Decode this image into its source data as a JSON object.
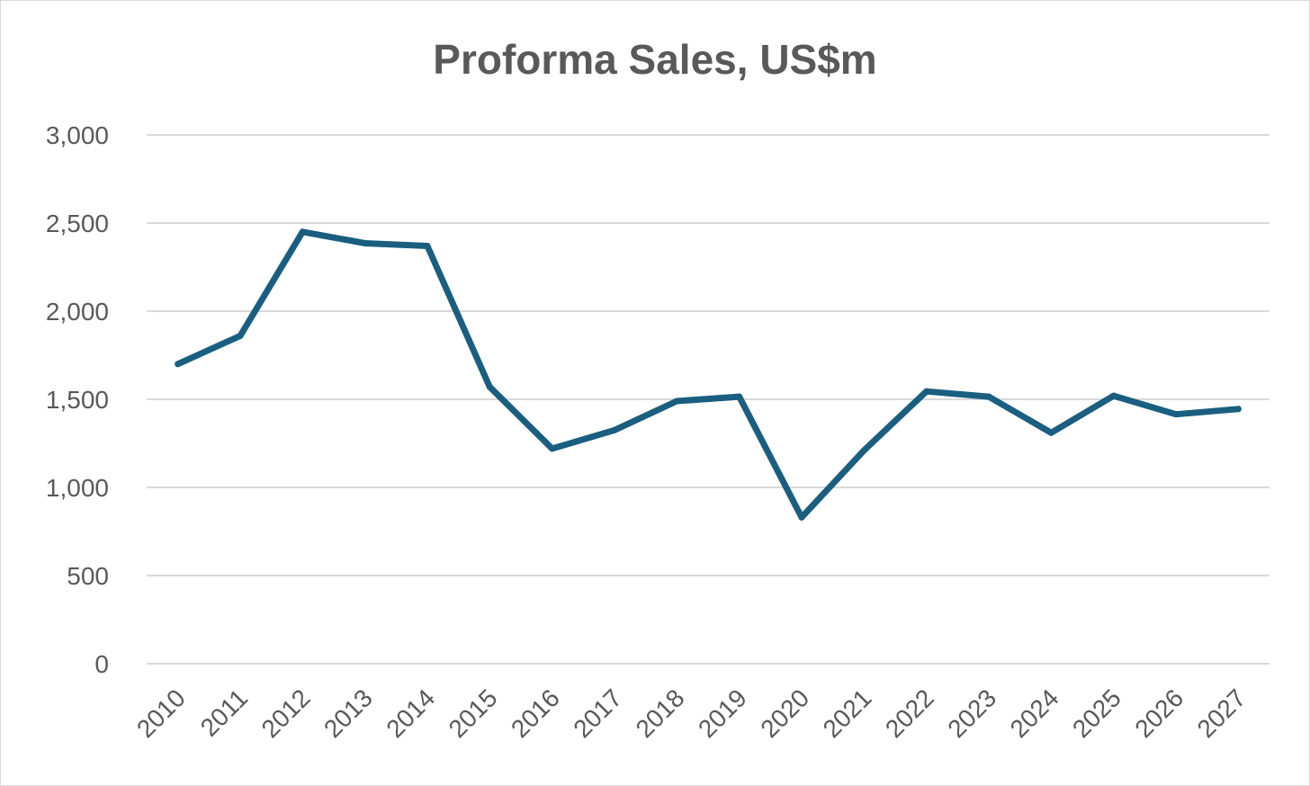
{
  "chart_data": {
    "type": "line",
    "title": "Proforma Sales, US$m",
    "xlabel": "",
    "ylabel": "",
    "categories": [
      "2010",
      "2011",
      "2012",
      "2013",
      "2014",
      "2015",
      "2016",
      "2017",
      "2018",
      "2019",
      "2020",
      "2021",
      "2022",
      "2023",
      "2024",
      "2025",
      "2026",
      "2027"
    ],
    "series": [
      {
        "values": [
          1700,
          1860,
          2450,
          2385,
          2370,
          1570,
          1220,
          1325,
          1490,
          1515,
          830,
          1210,
          1545,
          1515,
          1310,
          1520,
          1415,
          1445
        ],
        "color": "#1a5e80"
      }
    ],
    "ylim": [
      0,
      3000
    ],
    "yticks": [
      0,
      500,
      1000,
      1500,
      2000,
      2500,
      3000
    ],
    "ytick_labels": [
      "0",
      "500",
      "1,000",
      "1,500",
      "2,000",
      "2,500",
      "3,000"
    ],
    "grid": true,
    "gridline_color": "#d9d9d9",
    "legend": "none"
  }
}
